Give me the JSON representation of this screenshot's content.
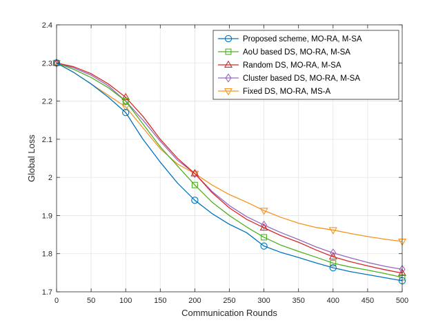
{
  "chart_data": {
    "type": "line",
    "title": "",
    "xlabel": "Communication Rounds",
    "ylabel": "Global Loss",
    "xlim": [
      0,
      500
    ],
    "ylim": [
      1.7,
      2.4
    ],
    "xticks": [
      0,
      50,
      100,
      150,
      200,
      250,
      300,
      350,
      400,
      450,
      500
    ],
    "yticks": [
      1.7,
      1.8,
      1.9,
      2.0,
      2.1,
      2.2,
      2.3,
      2.4
    ],
    "ytick_labels": [
      "1.7",
      "1.8",
      "1.9",
      "2",
      "2.1",
      "2.2",
      "2.3",
      "2.4"
    ],
    "grid": true,
    "legend_position": "top-right",
    "marker_x": [
      0,
      100,
      200,
      300,
      400,
      500
    ],
    "series": [
      {
        "name": "Proposed scheme, MO-RA, M-SA",
        "color": "#0072BD",
        "marker": "circle",
        "x": [
          0,
          25,
          50,
          75,
          100,
          125,
          150,
          175,
          200,
          225,
          250,
          275,
          300,
          325,
          350,
          375,
          400,
          425,
          450,
          475,
          500
        ],
        "values": [
          2.3,
          2.275,
          2.245,
          2.21,
          2.17,
          2.1,
          2.04,
          1.985,
          1.94,
          1.905,
          1.877,
          1.855,
          1.82,
          1.803,
          1.79,
          1.776,
          1.763,
          1.753,
          1.745,
          1.737,
          1.729
        ]
      },
      {
        "name": "AoU based DS, MO-RA, M-SA",
        "color": "#4DAF1E",
        "marker": "square",
        "x": [
          0,
          25,
          50,
          75,
          100,
          125,
          150,
          175,
          200,
          225,
          250,
          275,
          300,
          325,
          350,
          375,
          400,
          425,
          450,
          475,
          500
        ],
        "values": [
          2.3,
          2.283,
          2.262,
          2.235,
          2.2,
          2.14,
          2.08,
          2.03,
          1.98,
          1.935,
          1.9,
          1.87,
          1.843,
          1.822,
          1.806,
          1.791,
          1.775,
          1.765,
          1.757,
          1.748,
          1.738
        ]
      },
      {
        "name": "Random DS, MO-RA, M-SA",
        "color": "#D62728",
        "marker": "triangle-up",
        "x": [
          0,
          25,
          50,
          75,
          100,
          125,
          150,
          175,
          200,
          225,
          250,
          275,
          300,
          325,
          350,
          375,
          400,
          425,
          450,
          475,
          500
        ],
        "values": [
          2.3,
          2.29,
          2.272,
          2.245,
          2.21,
          2.16,
          2.1,
          2.05,
          2.01,
          1.96,
          1.92,
          1.89,
          1.868,
          1.847,
          1.83,
          1.81,
          1.792,
          1.779,
          1.768,
          1.758,
          1.749
        ]
      },
      {
        "name": "Cluster based DS, MO-RA, M-SA",
        "color": "#9467BD",
        "marker": "diamond",
        "x": [
          0,
          25,
          50,
          75,
          100,
          125,
          150,
          175,
          200,
          225,
          250,
          275,
          300,
          325,
          350,
          375,
          400,
          425,
          450,
          475,
          500
        ],
        "values": [
          2.3,
          2.287,
          2.268,
          2.24,
          2.2,
          2.15,
          2.095,
          2.045,
          2.01,
          1.963,
          1.926,
          1.897,
          1.875,
          1.855,
          1.837,
          1.818,
          1.802,
          1.789,
          1.777,
          1.767,
          1.759
        ]
      },
      {
        "name": "Fixed DS, MO-RA, MS-A",
        "color": "#F5931E",
        "marker": "triangle-down",
        "x": [
          0,
          25,
          50,
          75,
          100,
          125,
          150,
          175,
          200,
          225,
          250,
          275,
          300,
          325,
          350,
          375,
          400,
          425,
          450,
          475,
          500
        ],
        "values": [
          2.3,
          2.275,
          2.245,
          2.215,
          2.185,
          2.13,
          2.075,
          2.035,
          2.01,
          1.98,
          1.955,
          1.935,
          1.913,
          1.895,
          1.88,
          1.869,
          1.862,
          1.853,
          1.845,
          1.838,
          1.832
        ]
      }
    ]
  }
}
